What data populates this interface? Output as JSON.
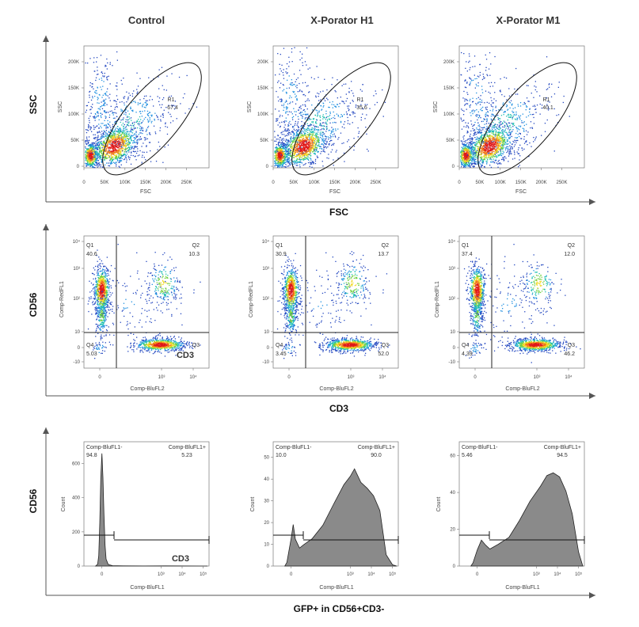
{
  "figure": {
    "columns": [
      "Control",
      "X-Porator H1",
      "X-Porator M1"
    ],
    "rows": [
      {
        "y_label": "SSC",
        "x_label": "FSC"
      },
      {
        "y_label": "CD56",
        "x_label": "CD3"
      },
      {
        "y_label": "CD56",
        "x_label": "GFP+ in CD56+CD3-"
      }
    ],
    "colors": {
      "high": "#e02010",
      "mid": "#f2e020",
      "low": "#2040c0",
      "hist_fill": "#8a8a8a"
    }
  },
  "chart_data": [
    {
      "type": "scatter",
      "row": 0,
      "xlabel": "FSC",
      "ylabel": "SSC",
      "x_ticks": [
        "0",
        "50K",
        "100K",
        "150K",
        "200K",
        "250K"
      ],
      "y_ticks": [
        "0",
        "50K",
        "100K",
        "150K",
        "200K"
      ],
      "xlim": [
        0,
        262144
      ],
      "ylim": [
        0,
        262144
      ],
      "panels": [
        {
          "column": "Control",
          "gate": "R1",
          "gate_value": "67.4"
        },
        {
          "column": "X-Porator H1",
          "gate": "R1",
          "gate_value": "35.6"
        },
        {
          "column": "X-Porator M1",
          "gate": "R1",
          "gate_value": "40.1"
        }
      ]
    },
    {
      "type": "scatter",
      "row": 1,
      "xlabel": "Comp-BluFL2",
      "ylabel": "Comp-RedFL1",
      "x_ticks": [
        "0",
        "10³",
        "10⁴"
      ],
      "y_ticks": [
        "-10",
        "0",
        "10",
        "10²",
        "10³",
        "10⁴"
      ],
      "quadrant_labels": [
        "Q1",
        "Q2",
        "Q3",
        "Q4"
      ],
      "panels": [
        {
          "column": "Control",
          "Q1": "40.6",
          "Q2": "10.3",
          "Q3": "",
          "Q4": "5.03",
          "overlay": "CD3"
        },
        {
          "column": "X-Porator H1",
          "Q1": "30.9",
          "Q2": "13.7",
          "Q3": "52.0",
          "Q4": "3.45"
        },
        {
          "column": "X-Porator M1",
          "Q1": "37.4",
          "Q2": "12.0",
          "Q3": "46.2",
          "Q4": "4.39"
        }
      ]
    },
    {
      "type": "area",
      "row": 2,
      "xlabel": "Comp-BluFL1",
      "ylabel": "Count",
      "x_ticks": [
        "0",
        "10³",
        "10⁴",
        "10⁵"
      ],
      "gate_neg": "Comp-BluFL1-",
      "gate_pos": "Comp-BluFL1+",
      "panels": [
        {
          "column": "Control",
          "neg": "94.8",
          "pos": "5.23",
          "overlay": "CD3",
          "y_ticks": [
            "0",
            "200",
            "400",
            "600"
          ],
          "ylim": [
            0,
            700
          ],
          "x": [
            -0.3,
            -0.2,
            -0.15,
            -0.1,
            -0.05,
            0.0,
            0.05,
            0.1,
            0.15,
            0.2,
            0.3,
            0.5,
            1.0,
            2.0,
            3.0,
            4.0,
            5.0
          ],
          "y": [
            0,
            10,
            60,
            250,
            520,
            660,
            520,
            300,
            120,
            40,
            10,
            3,
            1,
            0,
            0,
            0,
            0
          ]
        },
        {
          "column": "X-Porator H1",
          "neg": "10.0",
          "pos": "90.0",
          "y_ticks": [
            "0",
            "10",
            "20",
            "30",
            "40",
            "50"
          ],
          "ylim": [
            0,
            55
          ],
          "x": [
            -0.3,
            -0.2,
            0.0,
            0.1,
            0.2,
            0.4,
            0.6,
            1.0,
            1.5,
            2.0,
            2.5,
            2.8,
            3.0,
            3.3,
            3.6,
            3.9,
            4.2,
            4.5,
            4.8,
            5.0
          ],
          "y": [
            0,
            1,
            12,
            19,
            13,
            9,
            10,
            12,
            18,
            28,
            38,
            42,
            45,
            38,
            35,
            32,
            26,
            6,
            1,
            0
          ]
        },
        {
          "column": "X-Porator M1",
          "neg": "5.46",
          "pos": "94.5",
          "y_ticks": [
            "0",
            "20",
            "40",
            "60"
          ],
          "ylim": [
            0,
            65
          ],
          "x": [
            -0.3,
            -0.2,
            0.0,
            0.2,
            0.4,
            0.6,
            1.0,
            1.5,
            2.0,
            2.5,
            3.0,
            3.3,
            3.6,
            3.9,
            4.2,
            4.5,
            4.8,
            5.0
          ],
          "y": [
            0,
            1,
            8,
            14,
            12,
            10,
            12,
            15,
            24,
            35,
            44,
            50,
            51,
            48,
            40,
            28,
            8,
            0
          ]
        }
      ]
    }
  ]
}
